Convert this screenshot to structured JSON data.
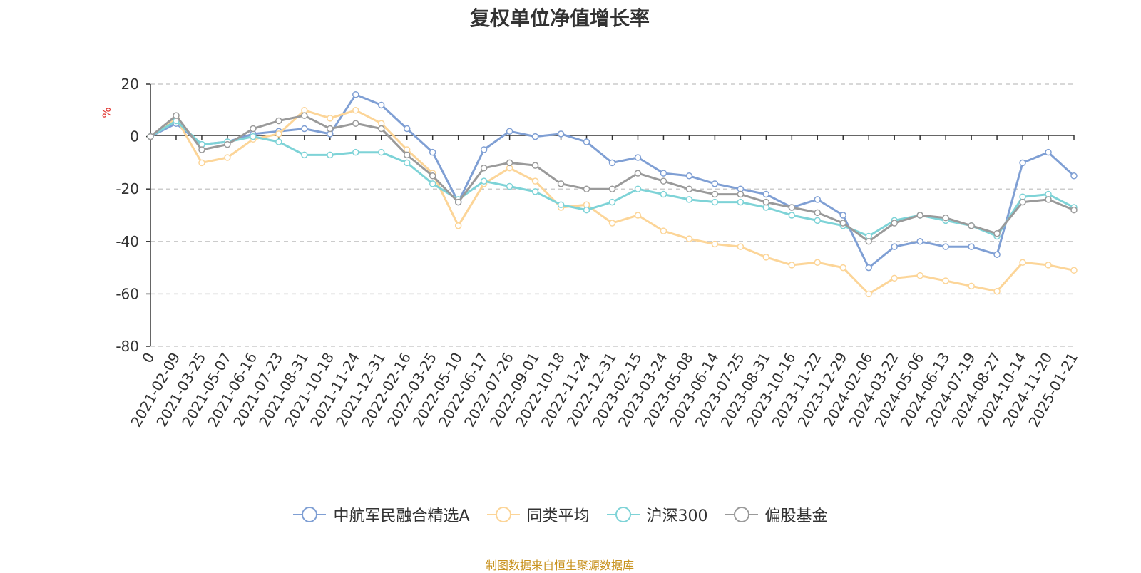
{
  "chart_data": {
    "type": "line",
    "title": "复权单位净值增长率",
    "ylabel": "%",
    "ylim": [
      -80,
      20
    ],
    "yticks": [
      20,
      0,
      -20,
      -40,
      -60,
      -80
    ],
    "grid": true,
    "legend_position": "bottom",
    "x": [
      "0",
      "2021-02-09",
      "2021-03-25",
      "2021-05-07",
      "2021-06-16",
      "2021-07-23",
      "2021-08-31",
      "2021-10-18",
      "2021-11-24",
      "2021-12-31",
      "2022-02-16",
      "2022-03-25",
      "2022-05-10",
      "2022-06-17",
      "2022-07-26",
      "2022-09-01",
      "2022-10-18",
      "2022-11-24",
      "2022-12-31",
      "2023-02-15",
      "2023-03-24",
      "2023-05-08",
      "2023-06-14",
      "2023-07-25",
      "2023-08-31",
      "2023-10-16",
      "2023-11-22",
      "2023-12-29",
      "2024-02-06",
      "2024-03-22",
      "2024-05-06",
      "2024-06-13",
      "2024-07-19",
      "2024-08-27",
      "2024-10-14",
      "2024-11-20",
      "2025-01-21"
    ],
    "series": [
      {
        "name": "中航军民融合精选A",
        "color": "#7f9fd4",
        "values": [
          0,
          5,
          -3,
          -2,
          1,
          2,
          3,
          1,
          16,
          12,
          3,
          -6,
          -25,
          -5,
          2,
          0,
          1,
          -2,
          -10,
          -8,
          -14,
          -15,
          -18,
          -20,
          -22,
          -27,
          -24,
          -30,
          -50,
          -42,
          -40,
          -42,
          -42,
          -45,
          -10,
          -6,
          -15
        ]
      },
      {
        "name": "同类平均",
        "color": "#fcd598",
        "values": [
          0,
          7,
          -10,
          -8,
          -1,
          1,
          10,
          7,
          10,
          5,
          -5,
          -14,
          -34,
          -18,
          -12,
          -17,
          -27,
          -26,
          -33,
          -30,
          -36,
          -39,
          -41,
          -42,
          -46,
          -49,
          -48,
          -50,
          -60,
          -54,
          -53,
          -55,
          -57,
          -59,
          -48,
          -49,
          -51
        ]
      },
      {
        "name": "沪深300",
        "color": "#7ed3d7",
        "values": [
          0,
          6,
          -3,
          -2,
          0,
          -2,
          -7,
          -7,
          -6,
          -6,
          -10,
          -18,
          -24,
          -17,
          -19,
          -21,
          -26,
          -28,
          -25,
          -20,
          -22,
          -24,
          -25,
          -25,
          -27,
          -30,
          -32,
          -34,
          -38,
          -32,
          -30,
          -32,
          -34,
          -38,
          -23,
          -22,
          -27
        ]
      },
      {
        "name": "偏股基金",
        "color": "#9a9a9a",
        "values": [
          0,
          8,
          -5,
          -3,
          3,
          6,
          8,
          3,
          5,
          3,
          -7,
          -15,
          -25,
          -12,
          -10,
          -11,
          -18,
          -20,
          -20,
          -14,
          -17,
          -20,
          -22,
          -22,
          -25,
          -27,
          -29,
          -33,
          -40,
          -33,
          -30,
          -31,
          -34,
          -37,
          -25,
          -24,
          -28
        ]
      }
    ]
  },
  "source_text": "制图数据来自恒生聚源数据库"
}
